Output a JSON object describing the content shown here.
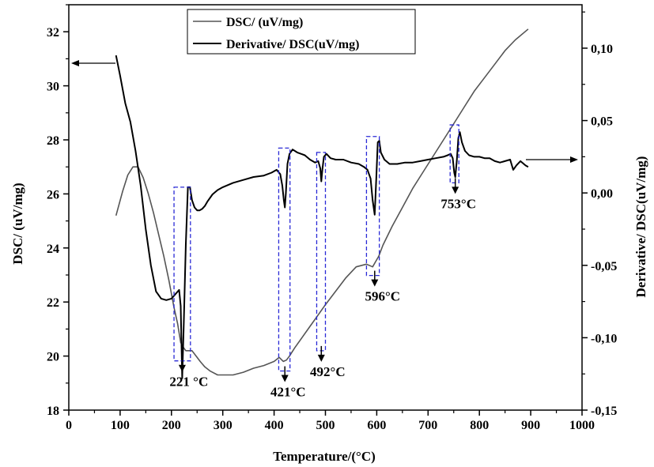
{
  "chart_data": {
    "type": "line",
    "title": "",
    "xlabel": "Temperature/(°C)",
    "ylabel_left": "DSC/ (uV/mg)",
    "ylabel_right": "Derivative/ DSC(uV/mg)",
    "xlim": [
      0,
      1000
    ],
    "ylim_left": [
      18,
      33
    ],
    "ylim_right": [
      -0.15,
      0.13
    ],
    "x_ticks": [
      0,
      100,
      200,
      300,
      400,
      500,
      600,
      700,
      800,
      900,
      1000
    ],
    "x_tick_labels": [
      "0",
      "100",
      "200",
      "300",
      "400",
      "500",
      "600",
      "700",
      "800",
      "900",
      "1000"
    ],
    "y_left_ticks": [
      18,
      20,
      22,
      24,
      26,
      28,
      30,
      32
    ],
    "y_left_tick_labels": [
      "18",
      "20",
      "22",
      "24",
      "26",
      "28",
      "30",
      "32"
    ],
    "y_right_ticks": [
      -0.15,
      -0.1,
      -0.05,
      0.0,
      0.05,
      0.1
    ],
    "y_right_tick_labels": [
      "-0,15",
      "-0,10",
      "-0,05",
      "0,00",
      "0,05",
      "0,10"
    ],
    "grid": false,
    "legend_position": "top-left",
    "series": [
      {
        "name": "DSC/ (uV/mg)",
        "axis": "left",
        "color": "#555555",
        "x": [
          92,
          105,
          115,
          125,
          135,
          145,
          155,
          165,
          175,
          185,
          195,
          205,
          212,
          218,
          224,
          228,
          232,
          240,
          248,
          256,
          265,
          275,
          290,
          305,
          320,
          340,
          360,
          380,
          400,
          410,
          418,
          424,
          430,
          440,
          455,
          470,
          485,
          500,
          520,
          540,
          560,
          580,
          592,
          598,
          604,
          612,
          630,
          650,
          670,
          690,
          710,
          730,
          750,
          770,
          790,
          810,
          830,
          850,
          870,
          895
        ],
        "y": [
          25.2,
          26.1,
          26.7,
          27.0,
          27.0,
          26.6,
          26.0,
          25.3,
          24.5,
          23.7,
          22.8,
          21.8,
          21.2,
          20.5,
          20.3,
          20.2,
          20.2,
          20.2,
          20.0,
          19.8,
          19.6,
          19.45,
          19.3,
          19.3,
          19.3,
          19.4,
          19.55,
          19.65,
          19.8,
          19.95,
          19.8,
          19.85,
          20.0,
          20.3,
          20.7,
          21.1,
          21.5,
          21.9,
          22.4,
          22.9,
          23.3,
          23.4,
          23.3,
          23.5,
          23.7,
          24.1,
          24.8,
          25.5,
          26.2,
          26.8,
          27.4,
          28.0,
          28.6,
          29.2,
          29.8,
          30.3,
          30.8,
          31.3,
          31.7,
          32.1
        ]
      },
      {
        "name": "Derivative/ DSC(uV/mg)",
        "axis": "right",
        "color": "#000000",
        "x": [
          92,
          100,
          110,
          120,
          130,
          140,
          150,
          160,
          170,
          180,
          190,
          200,
          205,
          210,
          215,
          218,
          221,
          224,
          228,
          232,
          236,
          240,
          245,
          250,
          255,
          260,
          265,
          270,
          280,
          290,
          300,
          320,
          340,
          360,
          380,
          395,
          405,
          412,
          416,
          419,
          421,
          423,
          426,
          430,
          436,
          445,
          460,
          470,
          480,
          486,
          490,
          492,
          494,
          497,
          502,
          510,
          520,
          535,
          550,
          565,
          575,
          582,
          588,
          592,
          596,
          599,
          602,
          605,
          608,
          615,
          625,
          640,
          655,
          670,
          685,
          700,
          715,
          730,
          738,
          744,
          748,
          751,
          753,
          756,
          759,
          762,
          766,
          772,
          780,
          790,
          800,
          810,
          820,
          830,
          840,
          850,
          860,
          866,
          872,
          880,
          890,
          895
        ],
        "y": [
          0.095,
          0.081,
          0.062,
          0.049,
          0.029,
          0.005,
          -0.025,
          -0.05,
          -0.068,
          -0.073,
          -0.074,
          -0.073,
          -0.071,
          -0.069,
          -0.067,
          -0.078,
          -0.128,
          -0.09,
          -0.035,
          0.004,
          0.004,
          -0.005,
          -0.01,
          -0.012,
          -0.012,
          -0.011,
          -0.009,
          -0.006,
          -0.001,
          0.002,
          0.004,
          0.007,
          0.009,
          0.011,
          0.012,
          0.014,
          0.016,
          0.013,
          0.005,
          -0.005,
          -0.01,
          0.0,
          0.02,
          0.027,
          0.03,
          0.028,
          0.026,
          0.023,
          0.021,
          0.022,
          0.017,
          0.008,
          0.016,
          0.025,
          0.027,
          0.024,
          0.023,
          0.023,
          0.021,
          0.02,
          0.018,
          0.016,
          0.01,
          -0.005,
          -0.015,
          0.01,
          0.035,
          0.036,
          0.028,
          0.023,
          0.02,
          0.02,
          0.021,
          0.021,
          0.022,
          0.023,
          0.024,
          0.025,
          0.026,
          0.027,
          0.024,
          0.014,
          0.011,
          0.022,
          0.038,
          0.042,
          0.035,
          0.029,
          0.026,
          0.025,
          0.025,
          0.024,
          0.024,
          0.022,
          0.021,
          0.022,
          0.023,
          0.016,
          0.019,
          0.022,
          0.019,
          0.018
        ]
      }
    ],
    "annotations": [
      {
        "label": "221 °C",
        "x": 221,
        "box": {
          "x0": 205,
          "x1": 237,
          "y0_right": -0.116,
          "y1_right": 0.004
        }
      },
      {
        "label": "421°C",
        "x": 421,
        "box": {
          "x0": 409,
          "x1": 431,
          "y0_right": -0.123,
          "y1_right": 0.031
        }
      },
      {
        "label": "492°C",
        "x": 492,
        "box": {
          "x0": 483,
          "x1": 500,
          "y0_right": -0.109,
          "y1_right": 0.028
        }
      },
      {
        "label": "596°C",
        "x": 596,
        "box": {
          "x0": 580,
          "x1": 605,
          "y0_right": -0.057,
          "y1_right": 0.039
        }
      },
      {
        "label": "753°C",
        "x": 753,
        "box": {
          "x0": 743,
          "x1": 760,
          "y0_right": 0.007,
          "y1_right": 0.047
        }
      }
    ],
    "axis_arrows": [
      {
        "name": "left-axis-arrow",
        "series": "DSC/ (uV/mg)",
        "direction": "left"
      },
      {
        "name": "right-axis-arrow",
        "series": "Derivative/ DSC(uV/mg)",
        "direction": "right"
      }
    ],
    "box_color": "#2a2ad6"
  }
}
